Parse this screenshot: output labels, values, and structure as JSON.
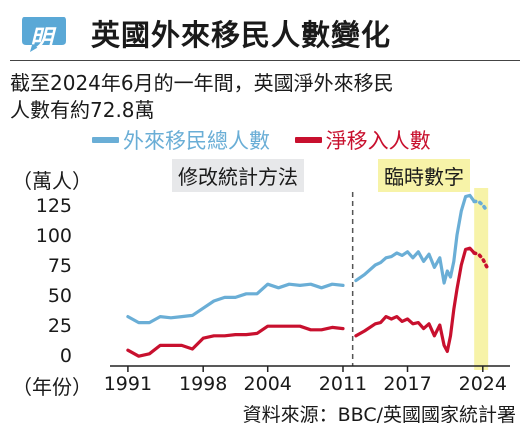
{
  "header": {
    "logo_text": "明",
    "title": "英國外來移民人數變化"
  },
  "subtitle": {
    "line1": "截至2024年6月的一年間，英國淨外來移民",
    "line2": "人數有約72.8萬"
  },
  "source": "資料來源：BBC/英國國家統計署",
  "colors": {
    "logo": "#5aa8d6",
    "total": "#6aaed6",
    "net": "#c8102e",
    "axis": "#222222",
    "method_box": "#e7e8ea",
    "provisional_band": "#f7f3a8"
  },
  "chart_data": {
    "type": "line",
    "title": "英國外來移民人數變化",
    "ylabel": "（萬人）",
    "xlabel": "（年份）",
    "ylim": [
      0,
      125
    ],
    "xlim": [
      1989.8,
      2025.6
    ],
    "yticks": [
      0,
      25,
      50,
      75,
      100,
      125
    ],
    "xticks": [
      1991,
      1998,
      2004,
      2011,
      2017,
      2024
    ],
    "grid": false,
    "legend_position": "top",
    "annotations": [
      {
        "text": "修改統計方法",
        "x": 2011.9,
        "style": "dashed-vertical-line"
      },
      {
        "text": "臨時數字",
        "x_range": [
          2023.2,
          2024.5
        ],
        "style": "yellow-band"
      }
    ],
    "series": [
      {
        "name": "外來移民總人數",
        "color": "#6aaed6",
        "segments": [
          {
            "x": [
              1991,
              1992,
              1993,
              1994,
              1995,
              1996,
              1997,
              1998,
              1999,
              2000,
              2001,
              2002,
              2003,
              2004,
              2005,
              2006,
              2007,
              2008,
              2009,
              2010,
              2011
            ],
            "y": [
              32,
              27,
              27,
              32,
              31,
              32,
              33,
              39,
              45,
              48,
              48,
              51,
              51,
              59,
              56,
              59,
              58,
              59,
              56,
              59,
              58
            ]
          },
          {
            "x": [
              2012.2,
              2013,
              2014,
              2014.5,
              2015,
              2015.5,
              2016,
              2016.5,
              2017,
              2017.5,
              2018,
              2018.5,
              2019,
              2019.5,
              2020,
              2020.4,
              2020.7,
              2021,
              2021.3,
              2021.6,
              2022,
              2022.4,
              2022.8,
              2023.2
            ],
            "y": [
              62,
              67,
              75,
              77,
              81,
              82,
              85,
              83,
              86,
              81,
              86,
              78,
              84,
              73,
              81,
              60,
              70,
              65,
              78,
              100,
              120,
              132,
              133,
              128
            ]
          },
          {
            "x": [
              2023.2,
              2023.6,
              2024.0,
              2024.4
            ],
            "y": [
              128,
              128,
              125,
              120
            ],
            "style": "dotted"
          }
        ]
      },
      {
        "name": "淨移入人數",
        "color": "#c8102e",
        "segments": [
          {
            "x": [
              1991,
              1992,
              1993,
              1994,
              1995,
              1996,
              1997,
              1998,
              1999,
              2000,
              2001,
              2002,
              2003,
              2004,
              2005,
              2006,
              2007,
              2008,
              2009,
              2010,
              2011
            ],
            "y": [
              4,
              -1,
              1,
              8,
              8,
              8,
              5,
              14,
              16,
              16,
              17,
              17,
              18,
              24,
              24,
              24,
              24,
              21,
              21,
              23,
              22
            ]
          },
          {
            "x": [
              2012.2,
              2013,
              2014,
              2014.5,
              2015,
              2015.5,
              2016,
              2016.5,
              2017,
              2017.5,
              2018,
              2018.5,
              2019,
              2019.5,
              2020,
              2020.4,
              2020.7,
              2021,
              2021.3,
              2021.6,
              2022,
              2022.4,
              2022.8,
              2023.2
            ],
            "y": [
              16,
              20,
              26,
              27,
              32,
              30,
              32,
              28,
              30,
              26,
              27,
              22,
              26,
              16,
              25,
              8,
              3,
              16,
              38,
              55,
              75,
              88,
              89,
              85
            ]
          },
          {
            "x": [
              2023.2,
              2023.6,
              2024.0,
              2024.4
            ],
            "y": [
              85,
              84,
              80,
              73
            ],
            "style": "dotted"
          }
        ]
      }
    ]
  }
}
